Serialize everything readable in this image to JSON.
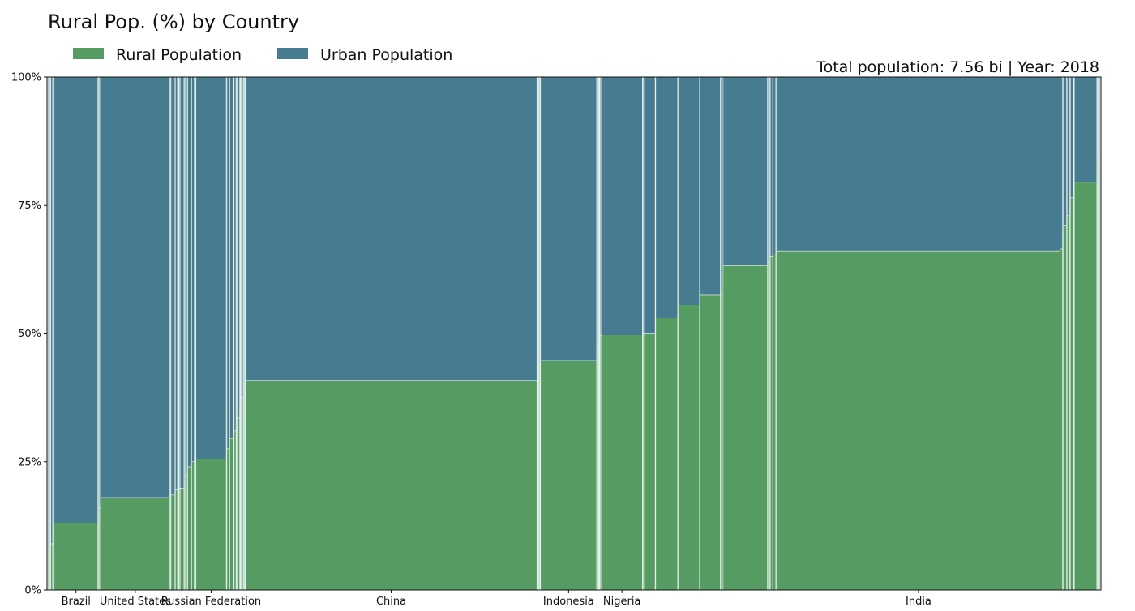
{
  "chart_data": {
    "type": "bar",
    "subtype": "variable-width stacked bar (marimekko)",
    "title": "Rural Pop. (%) by Country",
    "subtitle": "Total population: 7.56 bi | Year: 2018",
    "xlabel": "",
    "ylabel": "",
    "ylim": [
      0,
      100
    ],
    "y_ticks": [
      "0%",
      "25%",
      "50%",
      "75%",
      "100%"
    ],
    "y_tick_values": [
      0,
      25,
      50,
      75,
      100
    ],
    "legend": {
      "placement": "top-left"
    },
    "colors": {
      "rural": "#559b62",
      "urban": "#477b8f",
      "separator": "#e6f2ee",
      "axis": "#111111"
    },
    "series": [
      {
        "name": "Rural Population",
        "key": "rural"
      },
      {
        "name": "Urban Population",
        "key": "urban"
      }
    ],
    "total_population_bi": 7.56,
    "year": 2018,
    "countries": [
      {
        "label": "",
        "population_m": 2.0,
        "rural_pct": 2
      },
      {
        "label": "",
        "population_m": 1.5,
        "rural_pct": 3
      },
      {
        "label": "",
        "population_m": 4.0,
        "rural_pct": 8
      },
      {
        "label": "",
        "population_m": 3.0,
        "rural_pct": 9
      },
      {
        "label": "",
        "population_m": 3.5,
        "rural_pct": 9
      },
      {
        "label": "",
        "population_m": 2.0,
        "rural_pct": 9
      },
      {
        "label": "",
        "population_m": 2.5,
        "rural_pct": 9
      },
      {
        "label": "",
        "population_m": 8.0,
        "rural_pct": 9
      },
      {
        "label": "",
        "population_m": 2.5,
        "rural_pct": 9
      },
      {
        "label": "",
        "population_m": 3.0,
        "rural_pct": 12
      },
      {
        "label": "",
        "population_m": 2.0,
        "rural_pct": 13
      },
      {
        "label": "Brazil",
        "population_m": 209.0,
        "rural_pct": 13
      },
      {
        "label": "",
        "population_m": 3.5,
        "rural_pct": 14
      },
      {
        "label": "",
        "population_m": 3.5,
        "rural_pct": 16
      },
      {
        "label": "",
        "population_m": 6.0,
        "rural_pct": 16
      },
      {
        "label": "",
        "population_m": 2.5,
        "rural_pct": 16.5
      },
      {
        "label": "United States",
        "population_m": 327.0,
        "rural_pct": 18
      },
      {
        "label": "",
        "population_m": 4.0,
        "rural_pct": 18.5
      },
      {
        "label": "",
        "population_m": 3.0,
        "rural_pct": 18.5
      },
      {
        "label": "",
        "population_m": 17.0,
        "rural_pct": 18.5
      },
      {
        "label": "",
        "population_m": 4.0,
        "rural_pct": 19
      },
      {
        "label": "",
        "population_m": 10.0,
        "rural_pct": 19.5
      },
      {
        "label": "",
        "population_m": 2.0,
        "rural_pct": 19.5
      },
      {
        "label": "",
        "population_m": 3.5,
        "rural_pct": 19.7
      },
      {
        "label": "",
        "population_m": 1.5,
        "rural_pct": 19.8
      },
      {
        "label": "",
        "population_m": 4.0,
        "rural_pct": 19.8
      },
      {
        "label": "",
        "population_m": 2.0,
        "rural_pct": 19.8
      },
      {
        "label": "",
        "population_m": 18.0,
        "rural_pct": 19.8
      },
      {
        "label": "",
        "population_m": 2.5,
        "rural_pct": 20
      },
      {
        "label": "",
        "population_m": 3.0,
        "rural_pct": 21
      },
      {
        "label": "",
        "population_m": 4.0,
        "rural_pct": 22
      },
      {
        "label": "",
        "population_m": 6.0,
        "rural_pct": 22.5
      },
      {
        "label": "",
        "population_m": 3.0,
        "rural_pct": 23
      },
      {
        "label": "",
        "population_m": 15.0,
        "rural_pct": 24
      },
      {
        "label": "",
        "population_m": 4.0,
        "rural_pct": 24.5
      },
      {
        "label": "",
        "population_m": 12.0,
        "rural_pct": 25
      },
      {
        "label": "",
        "population_m": 3.0,
        "rural_pct": 25
      },
      {
        "label": "",
        "population_m": 2.5,
        "rural_pct": 25.3
      },
      {
        "label": "",
        "population_m": 2.5,
        "rural_pct": 25.5
      },
      {
        "label": "Russian Federation",
        "population_m": 145.0,
        "rural_pct": 25.5
      },
      {
        "label": "",
        "population_m": 3.0,
        "rural_pct": 27.5
      },
      {
        "label": "",
        "population_m": 10.0,
        "rural_pct": 27.5
      },
      {
        "label": "",
        "population_m": 4.0,
        "rural_pct": 29.5
      },
      {
        "label": "",
        "population_m": 18.0,
        "rural_pct": 29.5
      },
      {
        "label": "",
        "population_m": 2.5,
        "rural_pct": 30.5
      },
      {
        "label": "",
        "population_m": 9.0,
        "rural_pct": 31
      },
      {
        "label": "",
        "population_m": 3.0,
        "rural_pct": 31.5
      },
      {
        "label": "",
        "population_m": 3.0,
        "rural_pct": 33.5
      },
      {
        "label": "",
        "population_m": 10.0,
        "rural_pct": 33.5
      },
      {
        "label": "",
        "population_m": 3.5,
        "rural_pct": 34.5
      },
      {
        "label": "",
        "population_m": 2.5,
        "rural_pct": 35
      },
      {
        "label": "",
        "population_m": 3.0,
        "rural_pct": 36.5
      },
      {
        "label": "",
        "population_m": 9.0,
        "rural_pct": 37.5
      },
      {
        "label": "",
        "population_m": 2.5,
        "rural_pct": 38
      },
      {
        "label": "",
        "population_m": 3.0,
        "rural_pct": 39.5
      },
      {
        "label": "",
        "population_m": 3.0,
        "rural_pct": 40
      },
      {
        "label": "",
        "population_m": 2.5,
        "rural_pct": 40.5
      },
      {
        "label": "China",
        "population_m": 1393.0,
        "rural_pct": 40.8
      },
      {
        "label": "",
        "population_m": 1.5,
        "rural_pct": 41.5
      },
      {
        "label": "",
        "population_m": 3.0,
        "rural_pct": 42.5
      },
      {
        "label": "",
        "population_m": 2.5,
        "rural_pct": 43.5
      },
      {
        "label": "",
        "population_m": 2.0,
        "rural_pct": 43.8
      },
      {
        "label": "",
        "population_m": 4.0,
        "rural_pct": 44
      },
      {
        "label": "",
        "population_m": 2.5,
        "rural_pct": 44.2
      },
      {
        "label": "",
        "population_m": 2.0,
        "rural_pct": 44.5
      },
      {
        "label": "Indonesia",
        "population_m": 268.0,
        "rural_pct": 44.7
      },
      {
        "label": "",
        "population_m": 2.0,
        "rural_pct": 45
      },
      {
        "label": "",
        "population_m": 4.0,
        "rural_pct": 46
      },
      {
        "label": "",
        "population_m": 3.0,
        "rural_pct": 46.5
      },
      {
        "label": "",
        "population_m": 1.5,
        "rural_pct": 47
      },
      {
        "label": "",
        "population_m": 2.5,
        "rural_pct": 48
      },
      {
        "label": "",
        "population_m": 2.0,
        "rural_pct": 48.5
      },
      {
        "label": "",
        "population_m": 2.0,
        "rural_pct": 49
      },
      {
        "label": "",
        "population_m": 6.0,
        "rural_pct": 49.5
      },
      {
        "label": "Nigeria",
        "population_m": 196.0,
        "rural_pct": 49.7
      },
      {
        "label": "",
        "population_m": 2.0,
        "rural_pct": 49.8
      },
      {
        "label": "",
        "population_m": 4.0,
        "rural_pct": 50
      },
      {
        "label": "",
        "population_m": 55.0,
        "rural_pct": 50
      },
      {
        "label": "",
        "population_m": 2.5,
        "rural_pct": 51
      },
      {
        "label": "",
        "population_m": 105.0,
        "rural_pct": 53
      },
      {
        "label": "",
        "population_m": 3.0,
        "rural_pct": 53.5
      },
      {
        "label": "",
        "population_m": 3.0,
        "rural_pct": 54
      },
      {
        "label": "",
        "population_m": 98.0,
        "rural_pct": 55.5
      },
      {
        "label": "",
        "population_m": 3.0,
        "rural_pct": 56
      },
      {
        "label": "",
        "population_m": 96.0,
        "rural_pct": 57.5
      },
      {
        "label": "",
        "population_m": 3.0,
        "rural_pct": 58
      },
      {
        "label": "",
        "population_m": 6.0,
        "rural_pct": 58
      },
      {
        "label": "",
        "population_m": 5.0,
        "rural_pct": 63
      },
      {
        "label": "",
        "population_m": 212.0,
        "rural_pct": 63.3
      },
      {
        "label": "",
        "population_m": 2.5,
        "rural_pct": 63.5
      },
      {
        "label": "",
        "population_m": 4.0,
        "rural_pct": 64
      },
      {
        "label": "",
        "population_m": 2.0,
        "rural_pct": 64
      },
      {
        "label": "",
        "population_m": 3.0,
        "rural_pct": 64.2
      },
      {
        "label": "",
        "population_m": 2.5,
        "rural_pct": 64.5
      },
      {
        "label": "",
        "population_m": 11.0,
        "rural_pct": 65
      },
      {
        "label": "",
        "population_m": 2.5,
        "rural_pct": 65.3
      },
      {
        "label": "",
        "population_m": 12.0,
        "rural_pct": 65.5
      },
      {
        "label": "",
        "population_m": 3.0,
        "rural_pct": 65.7
      },
      {
        "label": "",
        "population_m": 3.0,
        "rural_pct": 65.9
      },
      {
        "label": "India",
        "population_m": 1353.0,
        "rural_pct": 66
      },
      {
        "label": "",
        "population_m": 12.0,
        "rural_pct": 66.5
      },
      {
        "label": "",
        "population_m": 3.0,
        "rural_pct": 67.5
      },
      {
        "label": "",
        "population_m": 4.0,
        "rural_pct": 69.5
      },
      {
        "label": "",
        "population_m": 12.0,
        "rural_pct": 71
      },
      {
        "label": "",
        "population_m": 3.0,
        "rural_pct": 72.5
      },
      {
        "label": "",
        "population_m": 10.0,
        "rural_pct": 73
      },
      {
        "label": "",
        "population_m": 3.0,
        "rural_pct": 74
      },
      {
        "label": "",
        "population_m": 2.5,
        "rural_pct": 75
      },
      {
        "label": "",
        "population_m": 12.0,
        "rural_pct": 76.5
      },
      {
        "label": "",
        "population_m": 3.0,
        "rural_pct": 77
      },
      {
        "label": "",
        "population_m": 2.5,
        "rural_pct": 78
      },
      {
        "label": "",
        "population_m": 1.5,
        "rural_pct": 79
      },
      {
        "label": "",
        "population_m": 107.0,
        "rural_pct": 79.5
      },
      {
        "label": "",
        "population_m": 2.0,
        "rural_pct": 80
      },
      {
        "label": "",
        "population_m": 3.0,
        "rural_pct": 81
      },
      {
        "label": "",
        "population_m": 3.0,
        "rural_pct": 82
      },
      {
        "label": "",
        "population_m": 3.5,
        "rural_pct": 83
      },
      {
        "label": "",
        "population_m": 3.5,
        "rural_pct": 83.5
      },
      {
        "label": "",
        "population_m": 2.0,
        "rural_pct": 84
      },
      {
        "label": "",
        "population_m": 1.5,
        "rural_pct": 86
      },
      {
        "label": "",
        "population_m": 1.5,
        "rural_pct": 87
      }
    ]
  }
}
